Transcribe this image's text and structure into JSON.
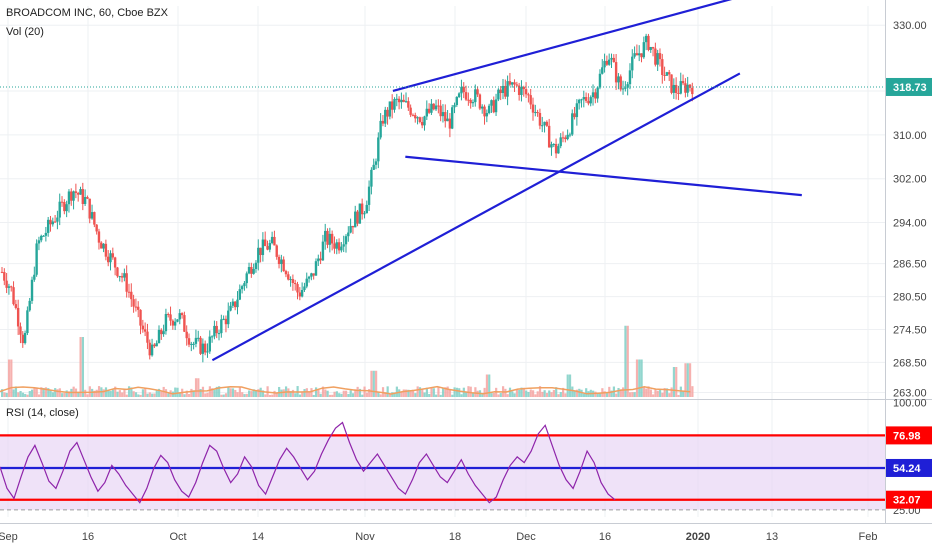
{
  "header": {
    "title": "BROADCOM INC, 60, Cboe BZX",
    "volume_label": "Vol (20)",
    "rsi_label": "RSI (14, close)"
  },
  "colors": {
    "up": "#26a69a",
    "down": "#ef5350",
    "trendline": "#1f1fd6",
    "rsi_line": "#8e24aa",
    "rsi_band": "#e8d5f5",
    "price_badge": "#26a69a",
    "rsi_upper": "#ff0000",
    "rsi_lower": "#ff0000",
    "rsi_mid": "#1f1fd6",
    "volume_ma": "#f0a060"
  },
  "chart_data": [
    {
      "type": "candlestick",
      "title": "BROADCOM INC, 60, Cboe BZX",
      "x_tick_labels": [
        "Sep",
        "16",
        "Oct",
        "14",
        "Nov",
        "18",
        "Dec",
        "16",
        "2020",
        "13",
        "Feb"
      ],
      "y_tick_labels": [
        "330.00",
        "318.00",
        "310.00",
        "302.00",
        "294.00",
        "286.50",
        "280.50",
        "274.50",
        "268.50",
        "263.00"
      ],
      "y_ticks": [
        330.0,
        318.0,
        310.0,
        302.0,
        294.0,
        286.5,
        280.5,
        274.5,
        268.5,
        263.0
      ],
      "ylim": [
        262.0,
        333.5
      ],
      "last_price": "318.73",
      "last_price_value": 318.73,
      "grid": true,
      "price_path": [
        [
          0.0,
          285
        ],
        [
          0.01,
          282
        ],
        [
          0.025,
          272
        ],
        [
          0.04,
          290
        ],
        [
          0.06,
          295
        ],
        [
          0.08,
          300
        ],
        [
          0.095,
          298
        ],
        [
          0.11,
          291
        ],
        [
          0.125,
          287
        ],
        [
          0.14,
          283
        ],
        [
          0.155,
          276
        ],
        [
          0.17,
          270
        ],
        [
          0.185,
          276
        ],
        [
          0.2,
          277
        ],
        [
          0.215,
          272
        ],
        [
          0.23,
          271
        ],
        [
          0.245,
          275
        ],
        [
          0.26,
          278
        ],
        [
          0.275,
          284
        ],
        [
          0.29,
          289
        ],
        [
          0.305,
          290
        ],
        [
          0.32,
          286
        ],
        [
          0.335,
          281
        ],
        [
          0.35,
          284
        ],
        [
          0.365,
          291
        ],
        [
          0.38,
          290
        ],
        [
          0.395,
          294
        ],
        [
          0.41,
          297
        ],
        [
          0.42,
          304
        ],
        [
          0.43,
          313
        ],
        [
          0.445,
          316
        ],
        [
          0.46,
          315
        ],
        [
          0.475,
          313
        ],
        [
          0.49,
          315
        ],
        [
          0.505,
          312
        ],
        [
          0.52,
          318
        ],
        [
          0.535,
          317
        ],
        [
          0.55,
          314
        ],
        [
          0.565,
          318
        ],
        [
          0.58,
          319
        ],
        [
          0.595,
          317
        ],
        [
          0.61,
          312
        ],
        [
          0.625,
          307
        ],
        [
          0.64,
          311
        ],
        [
          0.655,
          316
        ],
        [
          0.67,
          318
        ],
        [
          0.685,
          325
        ],
        [
          0.7,
          318
        ],
        [
          0.715,
          324
        ],
        [
          0.73,
          327
        ],
        [
          0.745,
          322
        ],
        [
          0.76,
          318
        ],
        [
          0.775,
          319
        ]
      ],
      "volume_spikes": [
        [
          0.01,
          0.5
        ],
        [
          0.09,
          0.8
        ],
        [
          0.22,
          0.25
        ],
        [
          0.42,
          0.35
        ],
        [
          0.55,
          0.3
        ],
        [
          0.64,
          0.3
        ],
        [
          0.705,
          0.95
        ],
        [
          0.72,
          0.5
        ],
        [
          0.76,
          0.4
        ],
        [
          0.775,
          0.45
        ]
      ],
      "trendlines": [
        {
          "name": "upper-wedge",
          "p1": [
            0.444,
            318.0
          ],
          "p2": [
            0.866,
            336.5
          ]
        },
        {
          "name": "lower-support",
          "p1": [
            0.24,
            268.9
          ],
          "p2": [
            0.836,
            321.2
          ]
        },
        {
          "name": "falling-line",
          "p1": [
            0.458,
            306.0
          ],
          "p2": [
            0.906,
            299.0
          ]
        }
      ]
    },
    {
      "type": "line",
      "title": "RSI (14, close)",
      "y_tick_labels": [
        "100.00",
        "25.00"
      ],
      "y_ticks": [
        100.0,
        25.0
      ],
      "ylim": [
        20.0,
        101.0
      ],
      "levels": [
        {
          "label": "76.98",
          "value": 76.98
        },
        {
          "label": "54.24",
          "value": 54.24
        },
        {
          "label": "32.07",
          "value": 32.07
        }
      ],
      "band": [
        25.0,
        77.0
      ],
      "values": [
        55,
        40,
        33,
        48,
        62,
        70,
        58,
        45,
        40,
        52,
        66,
        72,
        60,
        48,
        38,
        44,
        56,
        50,
        42,
        36,
        30,
        40,
        54,
        63,
        58,
        46,
        38,
        34,
        44,
        58,
        70,
        66,
        54,
        44,
        50,
        62,
        55,
        42,
        36,
        48,
        60,
        68,
        62,
        54,
        46,
        52,
        64,
        74,
        82,
        86,
        72,
        60,
        52,
        58,
        64,
        56,
        48,
        40,
        36,
        46,
        58,
        64,
        56,
        48,
        44,
        52,
        60,
        50,
        42,
        36,
        30,
        34,
        46,
        56,
        62,
        58,
        66,
        78,
        84,
        70,
        56,
        46,
        40,
        52,
        66,
        58,
        44,
        36,
        32
      ]
    }
  ]
}
